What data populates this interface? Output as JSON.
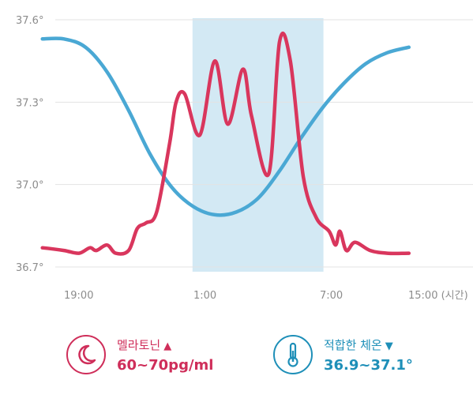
{
  "chart_data": {
    "type": "line",
    "xlabel": "",
    "ylabel": "",
    "x_ticks": [
      "19:00",
      "1:00",
      "7:00",
      "15:00 (시간)"
    ],
    "y_ticks": [
      "37.6°",
      "37.3°",
      "37.0°",
      "36.7°"
    ],
    "ylim": [
      36.7,
      37.6
    ],
    "grid": true,
    "highlight_band": {
      "from": "1:00",
      "to": "7:00",
      "color": "#d3e9f4"
    },
    "series": [
      {
        "role": "body-temperature",
        "color": "#4aa8d4",
        "points": [
          [
            -1,
            37.53
          ],
          [
            0,
            37.53
          ],
          [
            1,
            37.5
          ],
          [
            2,
            37.41
          ],
          [
            3,
            37.27
          ],
          [
            4,
            37.11
          ],
          [
            5,
            36.99
          ],
          [
            6,
            36.92
          ],
          [
            7,
            36.89
          ],
          [
            8,
            36.9
          ],
          [
            9,
            36.95
          ],
          [
            10,
            37.05
          ],
          [
            11,
            37.17
          ],
          [
            12,
            37.28
          ],
          [
            13,
            37.37
          ],
          [
            14,
            37.44
          ],
          [
            15,
            37.48
          ],
          [
            16,
            37.5
          ]
        ]
      },
      {
        "role": "melatonin",
        "color": "#d9365d",
        "points": [
          [
            -1,
            36.77
          ],
          [
            0,
            36.76
          ],
          [
            0.7,
            36.75
          ],
          [
            1.2,
            36.77
          ],
          [
            1.5,
            36.76
          ],
          [
            2,
            36.78
          ],
          [
            2.4,
            36.75
          ],
          [
            3,
            36.76
          ],
          [
            3.4,
            36.84
          ],
          [
            3.8,
            36.86
          ],
          [
            4.3,
            36.9
          ],
          [
            4.9,
            37.15
          ],
          [
            5.2,
            37.3
          ],
          [
            5.6,
            37.33
          ],
          [
            6.3,
            37.18
          ],
          [
            7,
            37.45
          ],
          [
            7.6,
            37.22
          ],
          [
            8.3,
            37.42
          ],
          [
            8.7,
            37.25
          ],
          [
            9.5,
            37.04
          ],
          [
            10,
            37.52
          ],
          [
            10.5,
            37.45
          ],
          [
            11.1,
            37.03
          ],
          [
            11.7,
            36.88
          ],
          [
            12.3,
            36.83
          ],
          [
            12.6,
            36.78
          ],
          [
            12.8,
            36.83
          ],
          [
            13.1,
            36.76
          ],
          [
            13.5,
            36.79
          ],
          [
            14.2,
            36.76
          ],
          [
            15,
            36.75
          ],
          [
            16,
            36.75
          ]
        ]
      }
    ]
  },
  "legend": {
    "melatonin": {
      "label": "멜라토닌",
      "arrow": "▲",
      "value": "60~70pg/ml",
      "icon": "moon-icon"
    },
    "temperature": {
      "label": "적합한 체온",
      "arrow": "▼",
      "value": "36.9~37.1°",
      "icon": "thermometer-icon"
    }
  }
}
